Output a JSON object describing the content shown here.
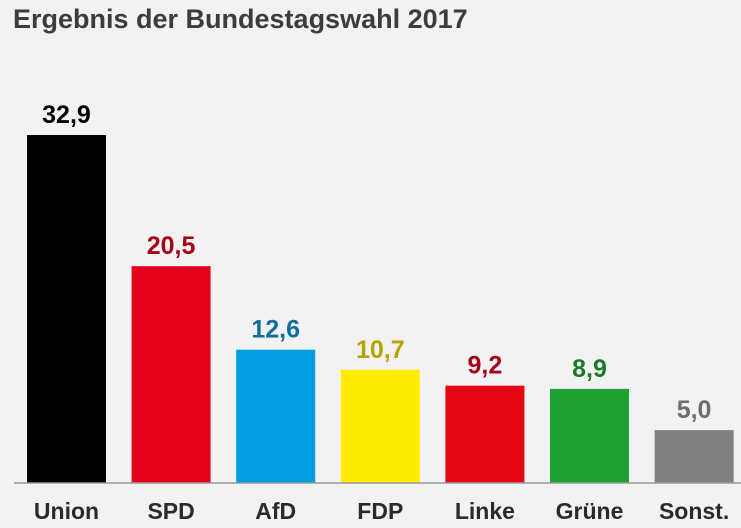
{
  "chart_data": {
    "type": "bar",
    "title": "Ergebnis der Bundestagswahl 2017",
    "categories": [
      "Union",
      "SPD",
      "AfD",
      "FDP",
      "Linke",
      "Grüne",
      "Sonst."
    ],
    "values": [
      32.9,
      20.5,
      12.6,
      10.7,
      9.2,
      8.9,
      5.0
    ],
    "value_labels": [
      "32,9",
      "20,5",
      "12,6",
      "10,7",
      "9,2",
      "8,9",
      "5,0"
    ],
    "bar_colors": [
      "#000000",
      "#e3001b",
      "#009ee0",
      "#ffed00",
      "#e30613",
      "#1ea032",
      "#808080"
    ],
    "label_colors": [
      "#000000",
      "#a50016",
      "#0f6e9e",
      "#b3a500",
      "#a50016",
      "#1a7a2a",
      "#6e6e6e"
    ],
    "xlabel": "",
    "ylabel": "",
    "ylim": [
      0,
      32.9
    ],
    "grid": false,
    "legend": "none"
  }
}
